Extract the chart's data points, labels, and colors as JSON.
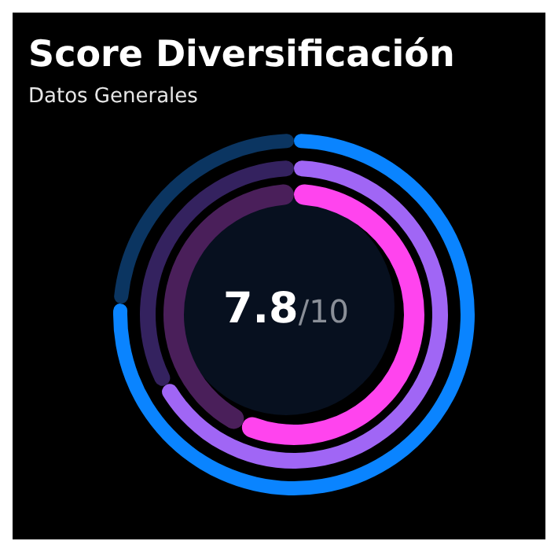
{
  "chart_data": {
    "type": "donut",
    "title": "Score Diversificación",
    "subtitle": "Datos Generales",
    "categories": [
      null,
      null
    ],
    "series": [
      {
        "colors": [
          "#0a84ff",
          "#0b3561"
        ],
        "values": [
          76,
          24
        ]
      },
      {
        "colors": [
          "#a066f5",
          "#34225f"
        ],
        "values": [
          67,
          33
        ]
      },
      {
        "colors": [
          "#ff44ee",
          "#4a1f5a"
        ],
        "values": [
          57,
          43
        ]
      }
    ],
    "annotations": [
      "7.8/10"
    ],
    "legend": false
  }
}
